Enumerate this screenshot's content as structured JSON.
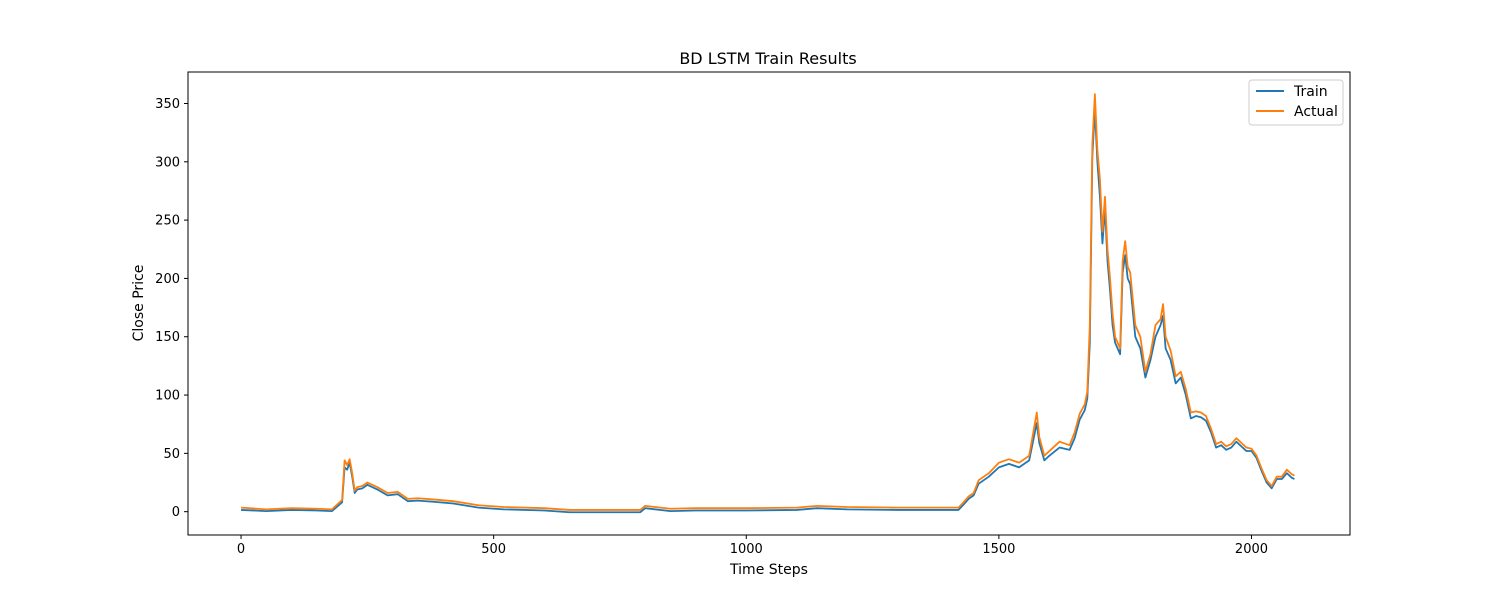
{
  "chart_data": {
    "type": "line",
    "title": "BD LSTM Train Results",
    "xlabel": "Time Steps",
    "ylabel": "Close Price",
    "xlim": [
      -105,
      2195
    ],
    "ylim": [
      -20,
      377
    ],
    "xticks": [
      0,
      500,
      1000,
      1500,
      2000
    ],
    "yticks": [
      0,
      50,
      100,
      150,
      200,
      250,
      300,
      350
    ],
    "grid": false,
    "legend_position": "top-right",
    "series": [
      {
        "name": "Train",
        "color": "#1f77b4",
        "x": [
          0,
          50,
          100,
          150,
          180,
          200,
          205,
          210,
          215,
          220,
          225,
          230,
          240,
          250,
          270,
          290,
          310,
          330,
          350,
          380,
          420,
          470,
          520,
          600,
          650,
          700,
          750,
          790,
          800,
          850,
          900,
          1000,
          1100,
          1140,
          1200,
          1300,
          1420,
          1430,
          1440,
          1450,
          1460,
          1480,
          1500,
          1520,
          1540,
          1560,
          1575,
          1580,
          1590,
          1600,
          1620,
          1640,
          1650,
          1660,
          1670,
          1675,
          1680,
          1685,
          1690,
          1695,
          1700,
          1705,
          1710,
          1715,
          1720,
          1725,
          1730,
          1740,
          1745,
          1750,
          1755,
          1760,
          1770,
          1780,
          1790,
          1800,
          1810,
          1820,
          1825,
          1830,
          1840,
          1850,
          1860,
          1870,
          1880,
          1890,
          1900,
          1910,
          1920,
          1930,
          1940,
          1950,
          1960,
          1970,
          1980,
          1990,
          2000,
          2010,
          2020,
          2030,
          2040,
          2050,
          2060,
          2070,
          2080,
          2085
        ],
        "y": [
          1.5,
          0.5,
          1.5,
          1.0,
          0.5,
          8.0,
          38.0,
          36.0,
          42.0,
          30.0,
          16.0,
          19.0,
          20.0,
          23.0,
          19.0,
          14.0,
          15.0,
          9.0,
          9.5,
          8.5,
          7.0,
          3.5,
          2.0,
          1.0,
          -0.5,
          -0.5,
          -0.5,
          -0.5,
          3.0,
          0.5,
          1.0,
          1.0,
          1.5,
          3.0,
          2.0,
          1.5,
          1.5,
          6.0,
          11.0,
          14.0,
          24.0,
          30.0,
          38.0,
          41.0,
          38.0,
          44.0,
          76.0,
          59.0,
          44.0,
          48.0,
          55.0,
          53.0,
          63.0,
          79.0,
          87.0,
          97.0,
          145.0,
          305.0,
          345.0,
          300.0,
          270.0,
          230.0,
          260.0,
          215.0,
          190.0,
          160.0,
          145.0,
          135.0,
          205.0,
          220.0,
          200.0,
          195.0,
          150.0,
          140.0,
          115.0,
          130.0,
          150.0,
          160.0,
          168.0,
          140.0,
          130.0,
          110.0,
          115.0,
          100.0,
          80.0,
          82.0,
          81.0,
          78.0,
          68.0,
          55.0,
          57.0,
          53.0,
          55.0,
          60.0,
          56.0,
          52.0,
          52.0,
          46.0,
          35.0,
          25.0,
          20.0,
          28.0,
          28.0,
          33.0,
          29.0,
          28.0
        ]
      },
      {
        "name": "Actual",
        "color": "#ff7f0e",
        "x": [
          0,
          50,
          100,
          150,
          180,
          200,
          205,
          210,
          215,
          220,
          225,
          230,
          240,
          250,
          270,
          290,
          310,
          330,
          350,
          380,
          420,
          470,
          520,
          600,
          650,
          700,
          750,
          790,
          800,
          850,
          900,
          1000,
          1100,
          1140,
          1200,
          1300,
          1420,
          1430,
          1440,
          1450,
          1460,
          1480,
          1500,
          1520,
          1540,
          1560,
          1575,
          1580,
          1590,
          1600,
          1620,
          1640,
          1650,
          1660,
          1670,
          1675,
          1680,
          1685,
          1690,
          1695,
          1700,
          1705,
          1710,
          1715,
          1720,
          1725,
          1730,
          1740,
          1745,
          1750,
          1755,
          1760,
          1770,
          1780,
          1790,
          1800,
          1810,
          1820,
          1825,
          1830,
          1840,
          1850,
          1860,
          1870,
          1880,
          1890,
          1900,
          1910,
          1920,
          1930,
          1940,
          1950,
          1960,
          1970,
          1980,
          1990,
          2000,
          2010,
          2020,
          2030,
          2040,
          2050,
          2060,
          2070,
          2080,
          2085
        ],
        "y": [
          3.5,
          2.0,
          3.0,
          2.5,
          2.0,
          10.0,
          44.0,
          40.0,
          45.0,
          33.0,
          18.0,
          21.0,
          22.0,
          25.0,
          21.0,
          16.0,
          17.0,
          11.0,
          11.5,
          10.5,
          9.0,
          5.5,
          4.0,
          3.0,
          1.5,
          1.5,
          1.5,
          1.5,
          5.0,
          2.5,
          3.0,
          3.0,
          3.5,
          5.0,
          4.0,
          3.5,
          3.5,
          8.0,
          13.0,
          16.0,
          27.0,
          33.0,
          42.0,
          45.0,
          42.0,
          48.0,
          85.0,
          64.0,
          48.0,
          52.0,
          60.0,
          57.0,
          68.0,
          84.0,
          92.0,
          103.0,
          160.0,
          315.0,
          358.0,
          310.0,
          285.0,
          240.0,
          270.0,
          225.0,
          200.0,
          170.0,
          150.0,
          140.0,
          215.0,
          232.0,
          210.0,
          205.0,
          160.0,
          150.0,
          120.0,
          135.0,
          160.0,
          165.0,
          178.0,
          150.0,
          138.0,
          116.0,
          120.0,
          105.0,
          85.0,
          86.0,
          85.0,
          82.0,
          71.0,
          58.0,
          60.0,
          56.0,
          58.0,
          63.0,
          59.0,
          55.0,
          54.0,
          48.0,
          37.0,
          27.0,
          22.0,
          30.0,
          30.0,
          36.0,
          32.0,
          31.0
        ]
      }
    ]
  }
}
